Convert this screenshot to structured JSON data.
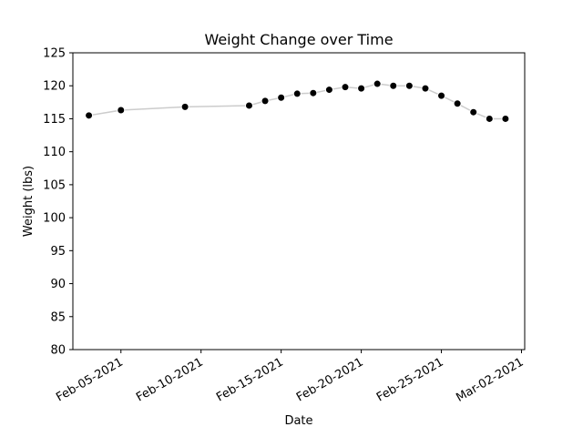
{
  "chart_data": {
    "type": "line",
    "title": "Weight Change over Time",
    "xlabel": "Date",
    "ylabel": "Weight (lbs)",
    "ylim": [
      80,
      125
    ],
    "yticks": [
      80,
      85,
      90,
      95,
      100,
      105,
      110,
      115,
      120,
      125
    ],
    "xlim": [
      "2021-02-02",
      "2021-03-02"
    ],
    "xticks": [
      {
        "date": "2021-02-05",
        "label": "Feb-05-2021"
      },
      {
        "date": "2021-02-10",
        "label": "Feb-10-2021"
      },
      {
        "date": "2021-02-15",
        "label": "Feb-15-2021"
      },
      {
        "date": "2021-02-20",
        "label": "Feb-20-2021"
      },
      {
        "date": "2021-02-25",
        "label": "Feb-25-2021"
      },
      {
        "date": "2021-03-02",
        "label": "Mar-02-2021"
      }
    ],
    "grid": false,
    "line_color": "#cccccc",
    "marker_color": "#000000",
    "series": [
      {
        "x": [
          "2021-02-03",
          "2021-02-05",
          "2021-02-09",
          "2021-02-13",
          "2021-02-14",
          "2021-02-15",
          "2021-02-16",
          "2021-02-17",
          "2021-02-18",
          "2021-02-19",
          "2021-02-20",
          "2021-02-21",
          "2021-02-22",
          "2021-02-23",
          "2021-02-24",
          "2021-02-25",
          "2021-02-26",
          "2021-02-27",
          "2021-02-28",
          "2021-03-01"
        ],
        "y": [
          115.5,
          116.3,
          116.8,
          117.0,
          117.7,
          118.2,
          118.8,
          118.9,
          119.4,
          119.8,
          119.6,
          120.3,
          120.0,
          120.0,
          119.6,
          118.5,
          117.3,
          116.0,
          115.0,
          115.0
        ]
      }
    ]
  }
}
